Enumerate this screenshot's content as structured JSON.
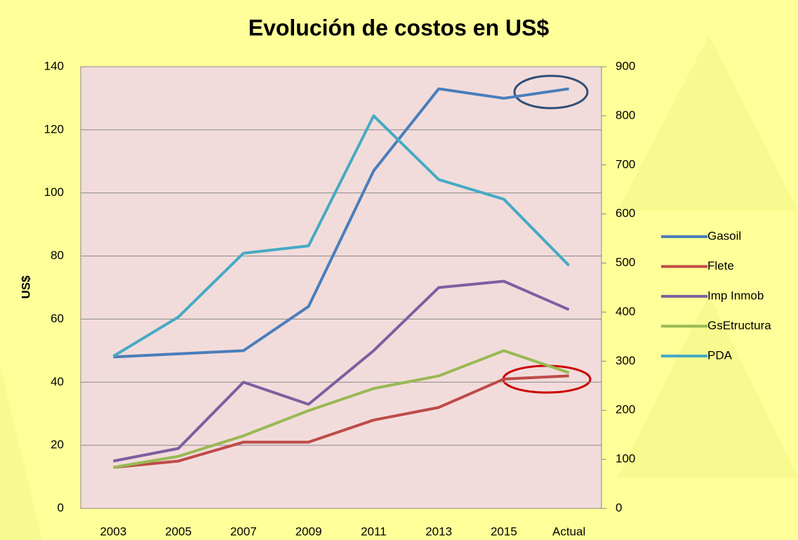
{
  "chart_data": {
    "type": "line",
    "title": "Evolución de costos en US$",
    "y_label": "US$",
    "categories": [
      "2003",
      "2005",
      "2007",
      "2009",
      "2011",
      "2013",
      "2015",
      "Actual"
    ],
    "series": [
      {
        "name": "Gasoil",
        "color": "#4a7ebb",
        "values": [
          48,
          49,
          50,
          64,
          107,
          133,
          130,
          133
        ]
      },
      {
        "name": "Flete",
        "color": "#be4b48",
        "values": [
          13,
          15,
          21,
          21,
          28,
          32,
          41,
          42
        ]
      },
      {
        "name": "Imp Inmob",
        "color": "#7d5fa0",
        "values": [
          15,
          19,
          40,
          33,
          50,
          70,
          72,
          63
        ]
      },
      {
        "name": "GsEtructura",
        "color": "#98b954",
        "values": [
          13,
          16.5,
          23,
          31,
          38,
          42,
          50,
          43
        ]
      },
      {
        "name": "PDA",
        "color": "#46aac5",
        "axis": "y2",
        "values": [
          310,
          390,
          520,
          535,
          800,
          670,
          630,
          495
        ]
      }
    ],
    "ylim": [
      0,
      140
    ],
    "yticks": [
      0,
      20,
      40,
      60,
      80,
      100,
      120,
      140
    ],
    "y2lim": [
      0,
      900
    ],
    "y2ticks": [
      0,
      100,
      200,
      300,
      400,
      500,
      600,
      700,
      800,
      900
    ],
    "grid": true,
    "legend": "right"
  }
}
